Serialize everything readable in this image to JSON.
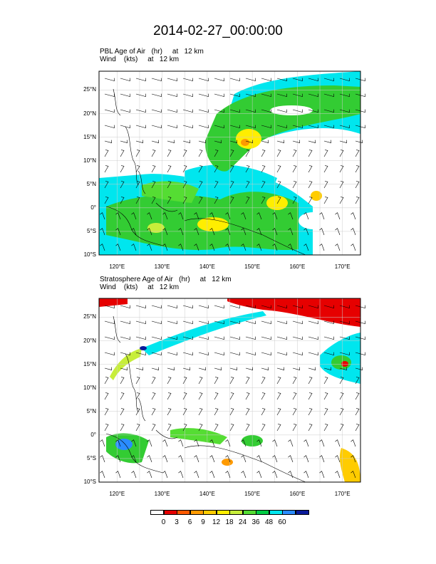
{
  "title": "2014-02-27_00:00:00",
  "panels": [
    {
      "title_line1": "PBL Age of Air   (hr)     at   12 km",
      "title_line2": "Wind    (kts)     at   12 km"
    },
    {
      "title_line1": "Stratosphere Age of Air   (hr)     at   12 km",
      "title_line2": "Wind    (kts)     at   12 km"
    }
  ],
  "map": {
    "lon_range": [
      116,
      174
    ],
    "lat_range": [
      -10,
      29
    ],
    "lat_ticks": [
      "25°N",
      "20°N",
      "15°N",
      "10°N",
      "5°N",
      "0°",
      "5°S",
      "10°S"
    ],
    "lon_ticks": [
      "120°E",
      "130°E",
      "140°E",
      "150°E",
      "160°E",
      "170°E"
    ]
  },
  "colorbar": {
    "labels": [
      "0",
      "3",
      "6",
      "9",
      "12",
      "18",
      "24",
      "36",
      "48",
      "60"
    ],
    "colors": [
      "#ffffff",
      "#e60000",
      "#ff5a00",
      "#ff9a00",
      "#ffcc00",
      "#ffee00",
      "#c7ee3a",
      "#55dd33",
      "#00cc44",
      "#00e6ee",
      "#2a8cff",
      "#0a1a9a"
    ]
  }
}
